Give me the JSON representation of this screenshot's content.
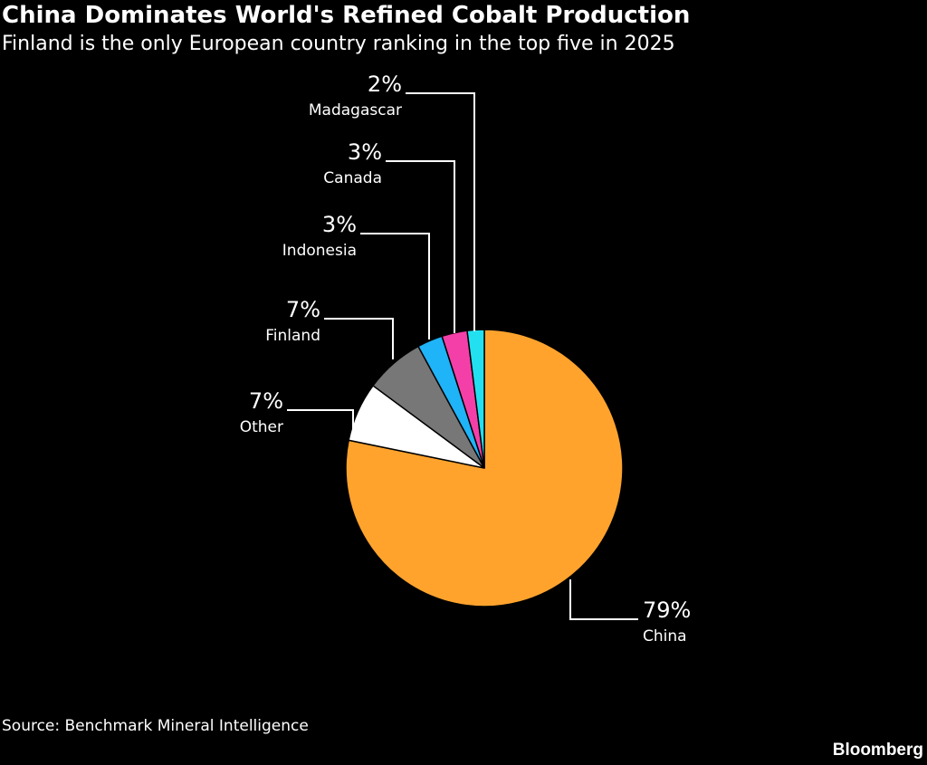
{
  "chart_data": {
    "type": "pie",
    "title": "China Dominates World's Refined Cobalt Production",
    "subtitle": "Finland is the only European country ranking in the top five in 2025",
    "slices": [
      {
        "label": "China",
        "value": 79,
        "display": "79%",
        "color": "#ffa32d"
      },
      {
        "label": "Other",
        "value": 7,
        "display": "7%",
        "color": "#ffffff"
      },
      {
        "label": "Finland",
        "value": 7,
        "display": "7%",
        "color": "#777777"
      },
      {
        "label": "Indonesia",
        "value": 3,
        "display": "3%",
        "color": "#1fb3f7"
      },
      {
        "label": "Canada",
        "value": 3,
        "display": "3%",
        "color": "#f53fa8"
      },
      {
        "label": "Madagascar",
        "value": 2,
        "display": "2%",
        "color": "#22e0f0"
      }
    ]
  },
  "footer": {
    "source": "Source: Benchmark Mineral Intelligence",
    "brand": "Bloomberg"
  }
}
